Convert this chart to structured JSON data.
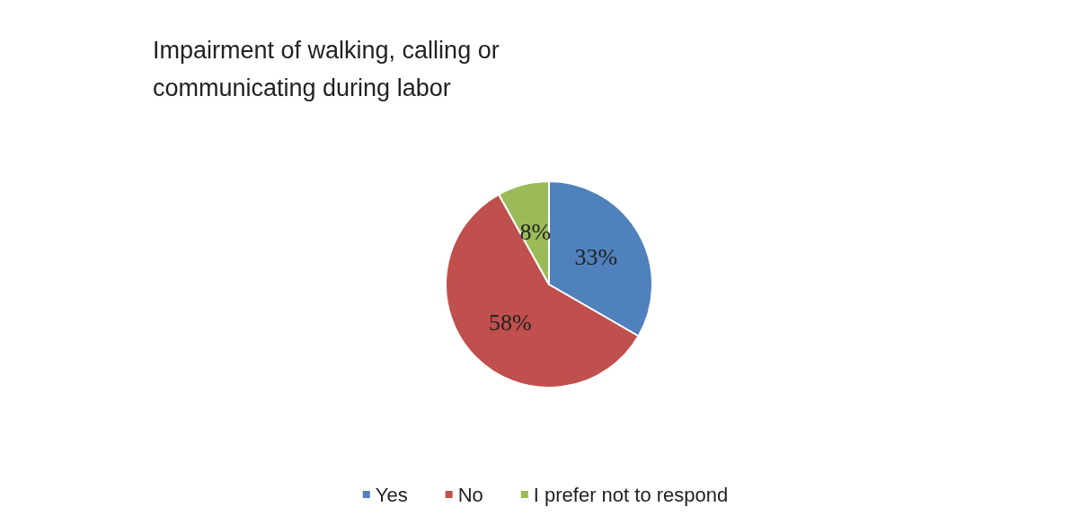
{
  "chart_data": {
    "type": "pie",
    "title": "Impairment of walking, calling or\ncommunicating during labor",
    "categories": [
      "Yes",
      "No",
      "I prefer not to respond"
    ],
    "values": [
      33,
      58,
      8
    ],
    "colors": [
      "#4f81bd",
      "#c0504d",
      "#9bbb59"
    ],
    "value_labels": [
      "33%",
      "58%",
      "8%"
    ],
    "legend": "bottom"
  }
}
